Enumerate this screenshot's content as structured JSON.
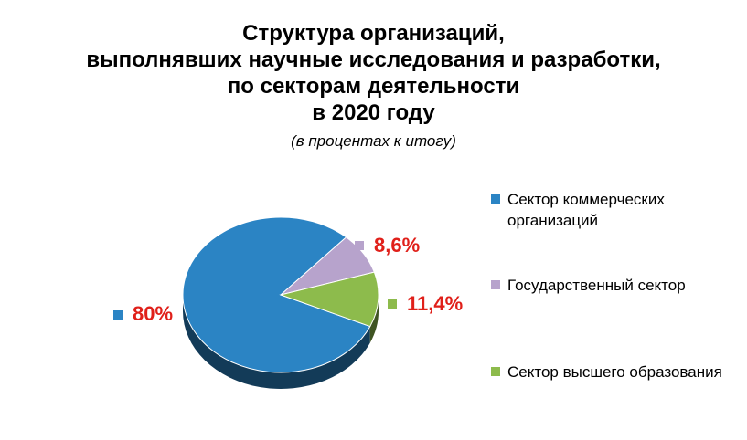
{
  "chart_data": {
    "type": "pie",
    "title_lines": [
      "Структура организаций,",
      "выполнявших научные исследования и разработки,",
      "по секторам деятельности",
      "в 2020 году"
    ],
    "subtitle": "(в процентах к итогу)",
    "series": [
      {
        "name": "Сектор коммерческих организаций",
        "value": 80,
        "label": "80%",
        "color": "#2B84C4"
      },
      {
        "name": "Государственный сектор",
        "value": 8.6,
        "label": "8,6%",
        "color": "#B7A3CC"
      },
      {
        "name": "Сектор высшего образования",
        "value": 11.4,
        "label": "11,4%",
        "color": "#8DBB4C"
      }
    ],
    "label_color": "#E0201A",
    "legend_position": "right",
    "style": "3d"
  }
}
